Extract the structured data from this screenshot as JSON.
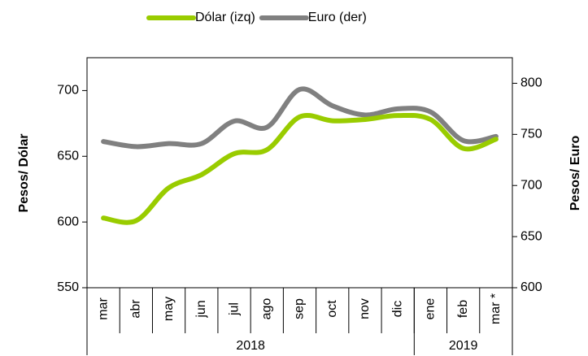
{
  "chart_data": {
    "type": "line",
    "categories": [
      "mar",
      "abr",
      "may",
      "jun",
      "jul",
      "ago",
      "sep",
      "oct",
      "nov",
      "dic",
      "ene",
      "feb",
      "mar *"
    ],
    "groups": [
      {
        "label": "2018",
        "count": 10
      },
      {
        "label": "2019",
        "count": 3
      }
    ],
    "series": [
      {
        "name": "Dólar (izq)",
        "color": "#99cc00",
        "values": [
          603,
          601,
          626,
          636,
          652,
          655,
          680,
          677,
          678,
          681,
          678,
          656,
          663
        ]
      },
      {
        "name": "Euro (der)",
        "color": "#808080",
        "axis": "y2",
        "values": [
          743,
          738,
          741,
          741,
          763,
          757,
          794,
          778,
          769,
          775,
          772,
          744,
          748
        ]
      }
    ],
    "y_label": "Pesos/ Dólar",
    "y2_label": "Pesos/ Euro",
    "ylim": [
      550,
      725
    ],
    "yticks": [
      550,
      600,
      650,
      700
    ],
    "y2lim": [
      600,
      825
    ],
    "y2ticks": [
      600,
      650,
      700,
      750,
      800
    ],
    "legend": "top"
  }
}
